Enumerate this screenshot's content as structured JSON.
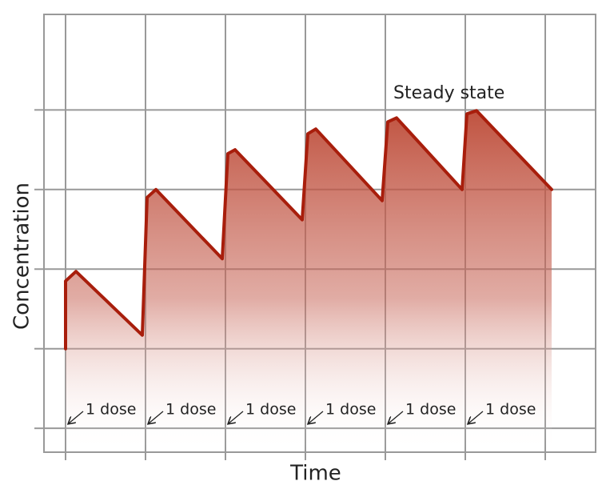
{
  "chart_data": {
    "type": "line",
    "xlabel": "Time",
    "ylabel": "Concentration",
    "annotation": "Steady state",
    "dose_labels": [
      "1 dose",
      "1 dose",
      "1 dose",
      "1 dose",
      "1 dose",
      "1 dose"
    ],
    "x": [
      0,
      0,
      0.13,
      0.96,
      1.02,
      1.13,
      1.96,
      2.03,
      2.12,
      2.96,
      3.03,
      3.13,
      3.96,
      4.03,
      4.14,
      4.96,
      5.02,
      5.14,
      6.08
    ],
    "values": [
      1.0,
      1.85,
      1.97,
      1.17,
      2.9,
      3.0,
      2.13,
      3.45,
      3.5,
      2.62,
      3.7,
      3.76,
      2.86,
      3.85,
      3.9,
      3.0,
      3.95,
      3.99,
      3.0
    ],
    "color": "#a81e0c",
    "xlim": [
      -0.27,
      6.63
    ],
    "ylim": [
      -0.3,
      5.2
    ],
    "xticks": [
      0,
      1,
      2,
      3,
      4,
      5,
      6
    ],
    "yticks": [
      0,
      1,
      2,
      3,
      4
    ],
    "grid": true
  }
}
